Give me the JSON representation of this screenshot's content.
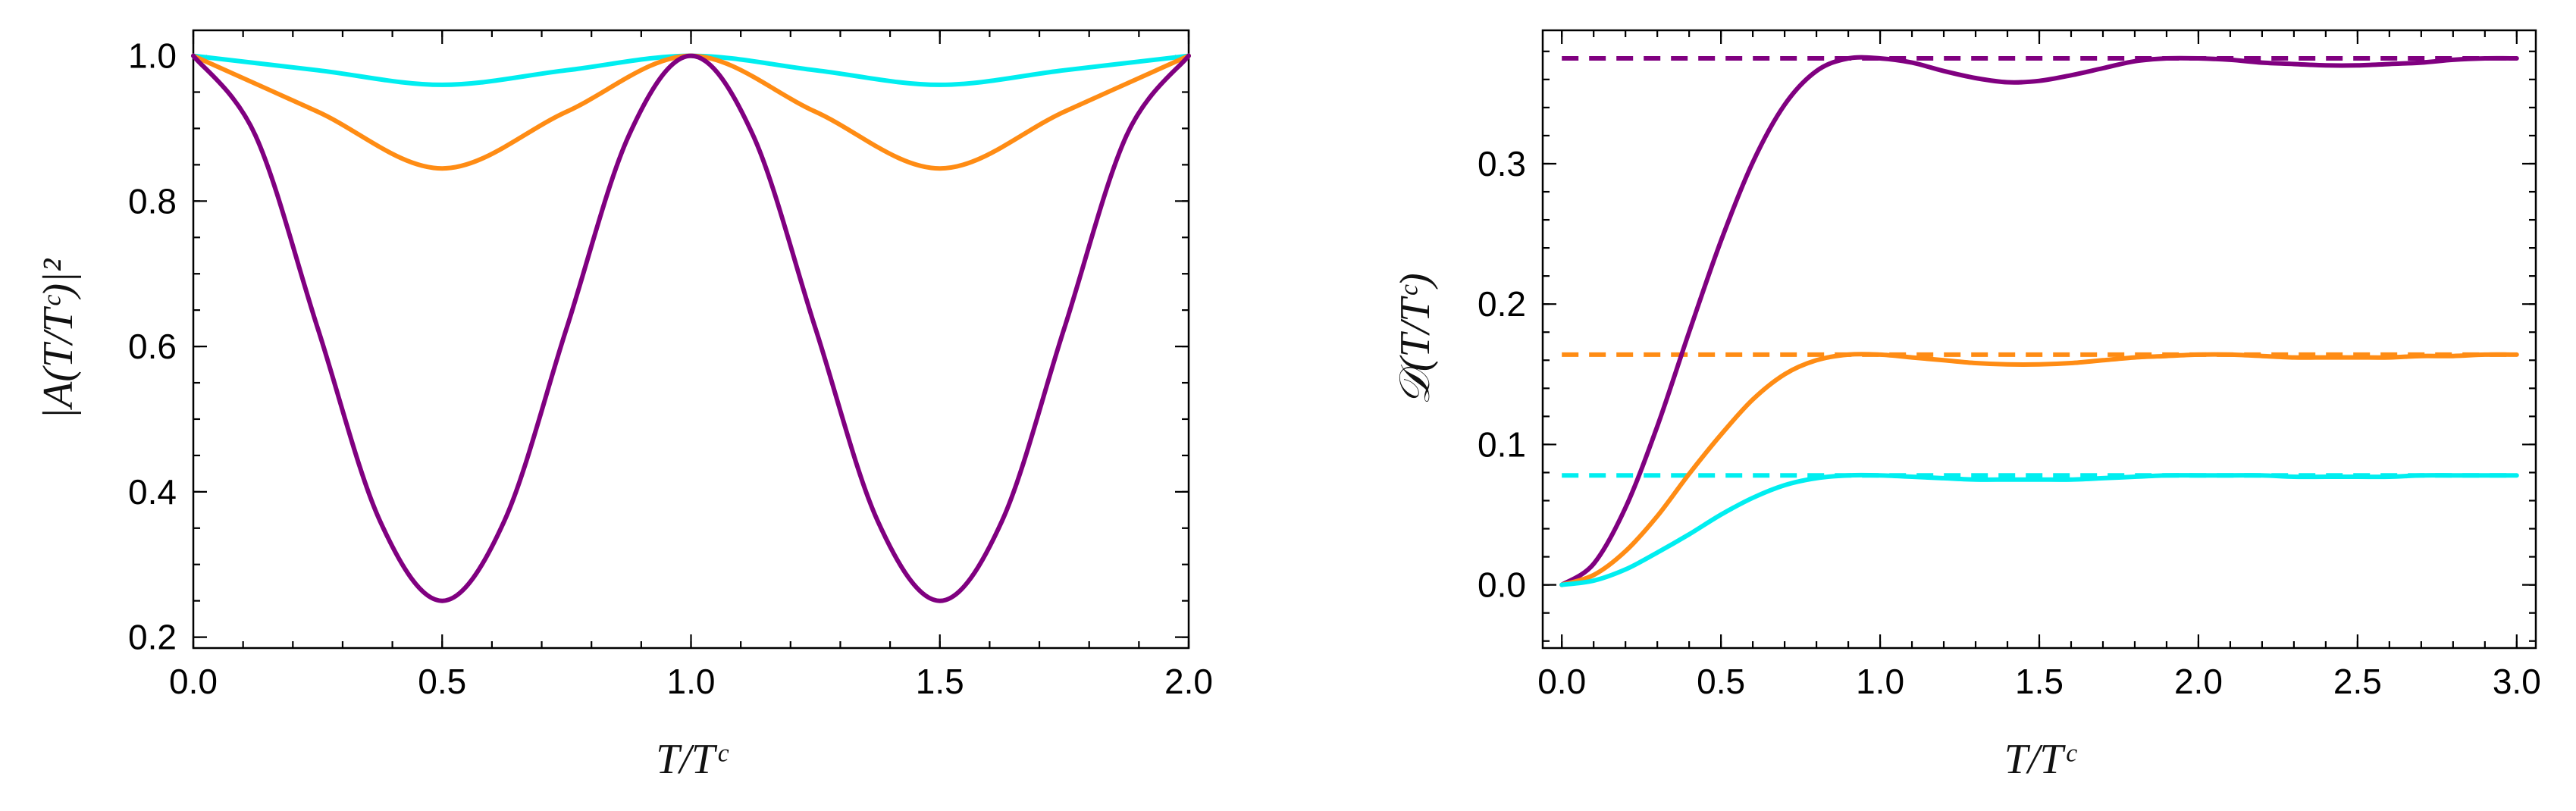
{
  "chart_data": [
    {
      "type": "line",
      "xlabel": "T/Tᶜ",
      "ylabel": "|A(T/Tᶜ)|²",
      "xlim": [
        0.0,
        2.0
      ],
      "ylim": [
        0.185,
        1.035
      ],
      "xticks": [
        "0.0",
        "0.5",
        "1.0",
        "1.5",
        "2.0"
      ],
      "yticks": [
        "0.2",
        "0.4",
        "0.6",
        "0.8",
        "1.0"
      ],
      "x_minor_step": 0.1,
      "y_minor_step": 0.05,
      "series": [
        {
          "name": "cyan",
          "color": "#00eef0",
          "style": "solid",
          "x": [
            0.0,
            0.25,
            0.5,
            0.75,
            1.0,
            1.25,
            1.5,
            1.75,
            2.0
          ],
          "y": [
            1.0,
            0.98,
            0.96,
            0.98,
            1.0,
            0.98,
            0.96,
            0.98,
            1.0
          ]
        },
        {
          "name": "orange",
          "color": "#ff8c14",
          "style": "solid",
          "x": [
            0.0,
            0.25,
            0.5,
            0.75,
            1.0,
            1.25,
            1.5,
            1.75,
            2.0
          ],
          "y": [
            1.0,
            0.923,
            0.845,
            0.923,
            1.0,
            0.923,
            0.845,
            0.923,
            1.0
          ]
        },
        {
          "name": "purple",
          "color": "#800080",
          "style": "solid",
          "x": [
            0.0,
            0.125,
            0.25,
            0.375,
            0.5,
            0.625,
            0.75,
            0.875,
            1.0,
            1.125,
            1.25,
            1.375,
            1.5,
            1.625,
            1.75,
            1.875,
            2.0
          ],
          "y": [
            1.0,
            0.89,
            0.625,
            0.36,
            0.25,
            0.36,
            0.625,
            0.89,
            1.0,
            0.89,
            0.625,
            0.36,
            0.25,
            0.36,
            0.625,
            0.89,
            1.0
          ]
        }
      ]
    },
    {
      "type": "line",
      "xlabel": "T/Tᶜ",
      "ylabel": "𝒟(T/Tᶜ)",
      "xlim": [
        -0.06,
        3.06
      ],
      "ylim": [
        -0.045,
        0.395
      ],
      "xticks": [
        "0.0",
        "0.5",
        "1.0",
        "1.5",
        "2.0",
        "2.5",
        "3.0"
      ],
      "yticks": [
        "0.0",
        "0.1",
        "0.2",
        "0.3"
      ],
      "x_minor_step": 0.1,
      "y_minor_step": 0.02,
      "series": [
        {
          "name": "purple",
          "color": "#800080",
          "style": "solid",
          "x": [
            0.0,
            0.1,
            0.2,
            0.3,
            0.4,
            0.5,
            0.6,
            0.7,
            0.8,
            0.9,
            1.0,
            1.1,
            1.2,
            1.3,
            1.4,
            1.5,
            1.6,
            1.7,
            1.8,
            1.9,
            2.0,
            2.1,
            2.2,
            2.3,
            2.4,
            2.5,
            2.6,
            2.7,
            2.8,
            2.9,
            3.0
          ],
          "y": [
            0.0,
            0.015,
            0.055,
            0.113,
            0.18,
            0.245,
            0.301,
            0.342,
            0.366,
            0.375,
            0.375,
            0.372,
            0.366,
            0.361,
            0.358,
            0.359,
            0.363,
            0.368,
            0.373,
            0.375,
            0.375,
            0.374,
            0.372,
            0.371,
            0.37,
            0.37,
            0.371,
            0.372,
            0.374,
            0.375,
            0.375
          ]
        },
        {
          "name": "purple-limit",
          "color": "#800080",
          "style": "dashed",
          "x": [
            0.0,
            3.0
          ],
          "y": [
            0.375,
            0.375
          ]
        },
        {
          "name": "orange",
          "color": "#ff8c14",
          "style": "solid",
          "x": [
            0.0,
            0.1,
            0.2,
            0.3,
            0.4,
            0.5,
            0.6,
            0.7,
            0.8,
            0.9,
            1.0,
            1.1,
            1.2,
            1.3,
            1.4,
            1.5,
            1.6,
            1.7,
            1.8,
            1.9,
            2.0,
            2.1,
            2.2,
            2.3,
            2.4,
            2.5,
            2.6,
            2.7,
            2.8,
            2.9,
            3.0
          ],
          "y": [
            0.0,
            0.007,
            0.024,
            0.049,
            0.079,
            0.107,
            0.132,
            0.15,
            0.16,
            0.164,
            0.164,
            0.162,
            0.16,
            0.158,
            0.157,
            0.157,
            0.158,
            0.16,
            0.162,
            0.163,
            0.164,
            0.164,
            0.163,
            0.162,
            0.162,
            0.162,
            0.162,
            0.163,
            0.163,
            0.164,
            0.164
          ]
        },
        {
          "name": "orange-limit",
          "color": "#ff8c14",
          "style": "dashed",
          "x": [
            0.0,
            3.0
          ],
          "y": [
            0.164,
            0.164
          ]
        },
        {
          "name": "cyan",
          "color": "#00eef0",
          "style": "solid",
          "x": [
            0.0,
            0.1,
            0.2,
            0.3,
            0.4,
            0.5,
            0.6,
            0.7,
            0.8,
            0.9,
            1.0,
            1.1,
            1.2,
            1.3,
            1.4,
            1.5,
            1.6,
            1.7,
            1.8,
            1.9,
            2.0,
            2.1,
            2.2,
            2.3,
            2.4,
            2.5,
            2.6,
            2.7,
            2.8,
            2.9,
            3.0
          ],
          "y": [
            0.0,
            0.003,
            0.011,
            0.023,
            0.036,
            0.05,
            0.062,
            0.071,
            0.076,
            0.078,
            0.078,
            0.077,
            0.076,
            0.075,
            0.075,
            0.075,
            0.075,
            0.076,
            0.077,
            0.078,
            0.078,
            0.078,
            0.078,
            0.077,
            0.077,
            0.077,
            0.077,
            0.078,
            0.078,
            0.078,
            0.078
          ]
        },
        {
          "name": "cyan-limit",
          "color": "#00eef0",
          "style": "dashed",
          "x": [
            0.0,
            3.0
          ],
          "y": [
            0.078,
            0.078
          ]
        }
      ]
    }
  ]
}
